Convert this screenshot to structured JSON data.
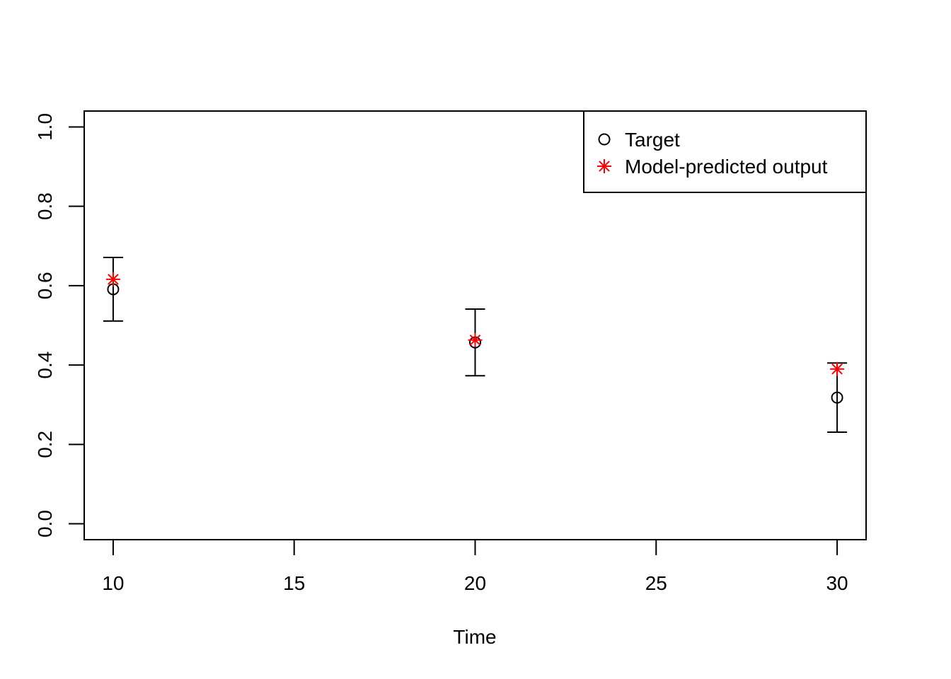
{
  "chart_data": {
    "type": "scatter",
    "x_label": "Time",
    "x": [
      10,
      20,
      30
    ],
    "series": [
      {
        "name": "Target",
        "color": "#000000",
        "marker": "circle",
        "values": [
          0.591,
          0.457,
          0.318
        ],
        "errors": [
          0.08,
          0.084,
          0.087
        ]
      },
      {
        "name": "Model-predicted output",
        "color": "#ff0000",
        "marker": "asterisk",
        "values": [
          0.616,
          0.463,
          0.39
        ]
      }
    ],
    "xlim": [
      9.2,
      30.8
    ],
    "ylim": [
      -0.04,
      1.04
    ],
    "xticks": [
      10,
      15,
      20,
      25,
      30
    ],
    "yticks": [
      {
        "value": 0,
        "label": "0.0"
      },
      0.2,
      0.4,
      0.6,
      0.8,
      {
        "value": 1,
        "label": "1.0"
      }
    ],
    "grid": false,
    "legend": "top-right"
  }
}
